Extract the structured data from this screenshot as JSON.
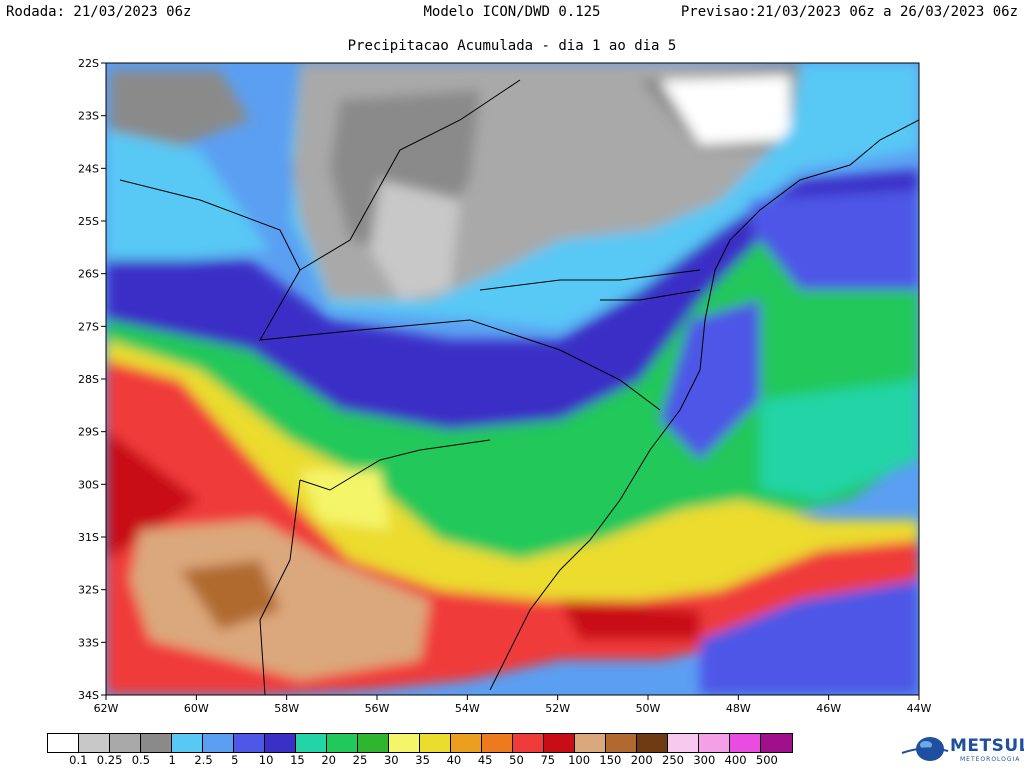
{
  "header": {
    "run_label": "Rodada: 21/03/2023 06z",
    "model_label": "Modelo ICON/DWD 0.125",
    "forecast_label": "Previsao:21/03/2023 06z a 26/03/2023 06z",
    "subtitle": "Precipitacao Acumulada - dia 1 ao dia 5"
  },
  "map": {
    "lat_ticks": [
      "22S",
      "23S",
      "24S",
      "25S",
      "26S",
      "27S",
      "28S",
      "29S",
      "30S",
      "31S",
      "32S",
      "33S",
      "34S"
    ],
    "lon_ticks": [
      "62W",
      "60W",
      "58W",
      "56W",
      "54W",
      "52W",
      "50W",
      "48W",
      "46W",
      "44W"
    ]
  },
  "legend": {
    "colors": [
      "#ffffff",
      "#c8c8c8",
      "#a9a9a9",
      "#8a8a8a",
      "#58c8f5",
      "#5b9ff2",
      "#4e57e6",
      "#3a2fc6",
      "#22d4a6",
      "#21c85a",
      "#2fb52f",
      "#f5f56a",
      "#ebdc2e",
      "#eaa01e",
      "#ee7a1f",
      "#f03b3b",
      "#c80d14",
      "#dba77c",
      "#b06a2f",
      "#6d3a12",
      "#f7c8f0",
      "#f3a0e8",
      "#e84ce0",
      "#a0108c"
    ],
    "labels": [
      "0.1",
      "0.25",
      "0.5",
      "1",
      "2.5",
      "5",
      "10",
      "15",
      "20",
      "25",
      "30",
      "35",
      "40",
      "45",
      "50",
      "75",
      "100",
      "150",
      "200",
      "250",
      "300",
      "400",
      "500"
    ]
  },
  "logo": {
    "name": "METSUL",
    "sub": "METEOROLOGIA"
  }
}
